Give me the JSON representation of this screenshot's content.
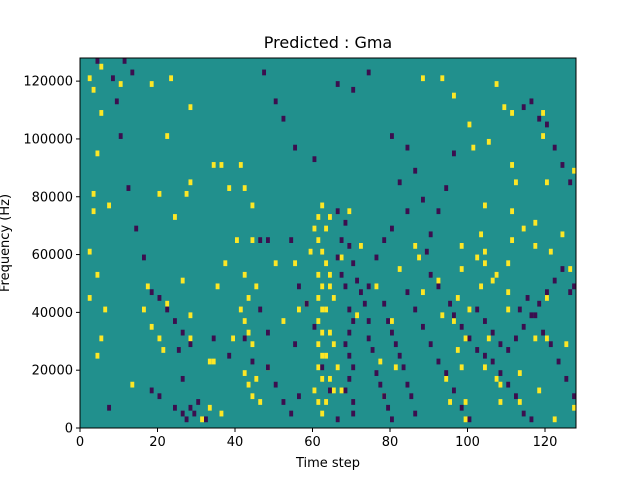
{
  "chart_data": {
    "type": "heatmap",
    "title": "Predicted : Gma",
    "xlabel": "Time step",
    "ylabel": "Frequency (Hz)",
    "xlim": [
      0,
      128
    ],
    "ylim": [
      0,
      128000
    ],
    "x_ticks": [
      0,
      20,
      40,
      60,
      80,
      100,
      120
    ],
    "y_ticks": [
      0,
      20000,
      40000,
      60000,
      80000,
      100000,
      120000
    ],
    "x_tick_labels": [
      "0",
      "20",
      "40",
      "60",
      "80",
      "100",
      "120"
    ],
    "y_tick_labels": [
      "0",
      "20000",
      "40000",
      "60000",
      "80000",
      "100000",
      "120000"
    ],
    "cell_width_steps": 1,
    "cell_height_hz": 2000,
    "value_levels": {
      "low": -1,
      "mid": 0,
      "high": 1
    },
    "colors": {
      "low": "#3b0f4f",
      "mid": "#21908d",
      "high": "#fde725"
    },
    "high_cells": [
      [
        2,
        120000
      ],
      [
        3,
        116000
      ],
      [
        4,
        94000
      ],
      [
        5,
        108000
      ],
      [
        5,
        124000
      ],
      [
        10,
        118000
      ],
      [
        18,
        118000
      ],
      [
        22,
        100000
      ],
      [
        23,
        120000
      ],
      [
        28,
        84000
      ],
      [
        28,
        110000
      ],
      [
        34,
        90000
      ],
      [
        36,
        90000
      ],
      [
        36,
        4000
      ],
      [
        38,
        82000
      ],
      [
        41,
        90000
      ],
      [
        42,
        82000
      ],
      [
        44,
        76000
      ],
      [
        3,
        80000
      ],
      [
        3,
        74000
      ],
      [
        7,
        76000
      ],
      [
        20,
        80000
      ],
      [
        24,
        72000
      ],
      [
        27,
        80000
      ],
      [
        31,
        2000
      ],
      [
        33,
        6000
      ],
      [
        39,
        30000
      ],
      [
        44,
        64000
      ],
      [
        45,
        48000
      ],
      [
        45,
        16000
      ],
      [
        2,
        60000
      ],
      [
        2,
        44000
      ],
      [
        4,
        52000
      ],
      [
        4,
        24000
      ],
      [
        6,
        40000
      ],
      [
        5,
        30000
      ],
      [
        13,
        14000
      ],
      [
        16,
        40000
      ],
      [
        17,
        48000
      ],
      [
        18,
        34000
      ],
      [
        20,
        30000
      ],
      [
        21,
        26000
      ],
      [
        22,
        42000
      ],
      [
        26,
        50000
      ],
      [
        28,
        30000
      ],
      [
        28,
        38000
      ],
      [
        33,
        22000
      ],
      [
        34,
        22000
      ],
      [
        35,
        48000
      ],
      [
        37,
        56000
      ],
      [
        40,
        64000
      ],
      [
        41,
        40000
      ],
      [
        42,
        52000
      ],
      [
        43,
        44000
      ],
      [
        42,
        36000
      ],
      [
        43,
        32000
      ],
      [
        44,
        28000
      ],
      [
        42,
        18000
      ],
      [
        43,
        14000
      ],
      [
        44,
        10000
      ],
      [
        46,
        8000
      ],
      [
        48,
        20000
      ],
      [
        50,
        56000
      ],
      [
        52,
        36000
      ],
      [
        55,
        56000
      ],
      [
        56,
        40000
      ],
      [
        58,
        42000
      ],
      [
        59,
        60000
      ],
      [
        60,
        68000
      ],
      [
        61,
        72000
      ],
      [
        62,
        76000
      ],
      [
        61,
        64000
      ],
      [
        62,
        60000
      ],
      [
        61,
        52000
      ],
      [
        62,
        48000
      ],
      [
        61,
        44000
      ],
      [
        62,
        40000
      ],
      [
        61,
        36000
      ],
      [
        62,
        32000
      ],
      [
        61,
        28000
      ],
      [
        62,
        24000
      ],
      [
        61,
        20000
      ],
      [
        62,
        16000
      ],
      [
        60,
        12000
      ],
      [
        61,
        8000
      ],
      [
        62,
        4000
      ],
      [
        63,
        56000
      ],
      [
        64,
        48000
      ],
      [
        63,
        40000
      ],
      [
        64,
        32000
      ],
      [
        63,
        24000
      ],
      [
        64,
        16000
      ],
      [
        63,
        8000
      ],
      [
        65,
        44000
      ],
      [
        64,
        52000
      ],
      [
        65,
        28000
      ],
      [
        66,
        20000
      ],
      [
        65,
        12000
      ],
      [
        63,
        68000
      ],
      [
        64,
        72000
      ],
      [
        67,
        58000
      ],
      [
        67,
        12000
      ],
      [
        69,
        74000
      ],
      [
        71,
        38000
      ],
      [
        72,
        62000
      ],
      [
        76,
        48000
      ],
      [
        77,
        22000
      ],
      [
        78,
        10000
      ],
      [
        80,
        36000
      ],
      [
        81,
        20000
      ],
      [
        82,
        54000
      ],
      [
        86,
        62000
      ],
      [
        87,
        58000
      ],
      [
        88,
        46000
      ],
      [
        92,
        50000
      ],
      [
        93,
        38000
      ],
      [
        94,
        16000
      ],
      [
        95,
        8000
      ],
      [
        96,
        36000
      ],
      [
        97,
        44000
      ],
      [
        98,
        62000
      ],
      [
        98,
        54000
      ],
      [
        97,
        26000
      ],
      [
        98,
        20000
      ],
      [
        99,
        30000
      ],
      [
        99,
        8000
      ],
      [
        99,
        2000
      ],
      [
        100,
        40000
      ],
      [
        102,
        58000
      ],
      [
        103,
        48000
      ],
      [
        104,
        60000
      ],
      [
        104,
        56000
      ],
      [
        104,
        20000
      ],
      [
        105,
        30000
      ],
      [
        106,
        50000
      ],
      [
        107,
        52000
      ],
      [
        108,
        14000
      ],
      [
        110,
        40000
      ],
      [
        110,
        46000
      ],
      [
        111,
        74000
      ],
      [
        111,
        64000
      ],
      [
        111,
        90000
      ],
      [
        111,
        108000
      ],
      [
        112,
        84000
      ],
      [
        113,
        18000
      ],
      [
        113,
        8000
      ],
      [
        114,
        68000
      ],
      [
        117,
        70000
      ],
      [
        117,
        62000
      ],
      [
        117,
        30000
      ],
      [
        118,
        12000
      ],
      [
        119,
        100000
      ],
      [
        119,
        108000
      ],
      [
        120,
        84000
      ],
      [
        120,
        44000
      ],
      [
        120,
        30000
      ],
      [
        121,
        60000
      ],
      [
        122,
        2000
      ],
      [
        124,
        66000
      ],
      [
        125,
        28000
      ],
      [
        126,
        54000
      ],
      [
        127,
        88000
      ],
      [
        127,
        6000
      ],
      [
        128,
        124000
      ],
      [
        110,
        56000
      ],
      [
        107,
        16000
      ],
      [
        108,
        8000
      ],
      [
        88,
        120000
      ],
      [
        93,
        120000
      ],
      [
        96,
        114000
      ],
      [
        100,
        104000
      ],
      [
        101,
        96000
      ],
      [
        105,
        98000
      ],
      [
        107,
        118000
      ],
      [
        109,
        110000
      ],
      [
        104,
        76000
      ],
      [
        103,
        66000
      ]
    ],
    "low_cells": [
      [
        4,
        126000
      ],
      [
        11,
        126000
      ],
      [
        13,
        122000
      ],
      [
        7,
        6000
      ],
      [
        9,
        112000
      ],
      [
        8,
        120000
      ],
      [
        10,
        100000
      ],
      [
        12,
        82000
      ],
      [
        14,
        68000
      ],
      [
        16,
        58000
      ],
      [
        18,
        46000
      ],
      [
        20,
        44000
      ],
      [
        22,
        40000
      ],
      [
        24,
        36000
      ],
      [
        25,
        26000
      ],
      [
        26,
        32000
      ],
      [
        28,
        28000
      ],
      [
        26,
        16000
      ],
      [
        18,
        12000
      ],
      [
        20,
        10000
      ],
      [
        24,
        6000
      ],
      [
        26,
        4000
      ],
      [
        27,
        2000
      ],
      [
        28,
        6000
      ],
      [
        29,
        4000
      ],
      [
        30,
        8000
      ],
      [
        32,
        2000
      ],
      [
        34,
        30000
      ],
      [
        38,
        24000
      ],
      [
        42,
        30000
      ],
      [
        44,
        22000
      ],
      [
        48,
        20000
      ],
      [
        50,
        14000
      ],
      [
        52,
        8000
      ],
      [
        54,
        4000
      ],
      [
        55,
        28000
      ],
      [
        56,
        48000
      ],
      [
        58,
        42000
      ],
      [
        60,
        34000
      ],
      [
        62,
        20000
      ],
      [
        64,
        12000
      ],
      [
        66,
        2000
      ],
      [
        66,
        58000
      ],
      [
        67,
        52000
      ],
      [
        68,
        48000
      ],
      [
        69,
        40000
      ],
      [
        70,
        36000
      ],
      [
        69,
        32000
      ],
      [
        68,
        28000
      ],
      [
        69,
        24000
      ],
      [
        70,
        20000
      ],
      [
        69,
        16000
      ],
      [
        68,
        12000
      ],
      [
        70,
        8000
      ],
      [
        70,
        4000
      ],
      [
        67,
        64000
      ],
      [
        68,
        70000
      ],
      [
        66,
        74000
      ],
      [
        69,
        62000
      ],
      [
        70,
        56000
      ],
      [
        71,
        50000
      ],
      [
        72,
        46000
      ],
      [
        73,
        42000
      ],
      [
        74,
        36000
      ],
      [
        74,
        30000
      ],
      [
        75,
        26000
      ],
      [
        76,
        18000
      ],
      [
        77,
        14000
      ],
      [
        78,
        10000
      ],
      [
        79,
        6000
      ],
      [
        80,
        2000
      ],
      [
        78,
        42000
      ],
      [
        79,
        36000
      ],
      [
        80,
        32000
      ],
      [
        81,
        28000
      ],
      [
        82,
        24000
      ],
      [
        83,
        20000
      ],
      [
        84,
        14000
      ],
      [
        85,
        10000
      ],
      [
        86,
        4000
      ],
      [
        84,
        46000
      ],
      [
        86,
        40000
      ],
      [
        88,
        34000
      ],
      [
        90,
        28000
      ],
      [
        92,
        22000
      ],
      [
        94,
        18000
      ],
      [
        96,
        12000
      ],
      [
        98,
        6000
      ],
      [
        100,
        2000
      ],
      [
        74,
        48000
      ],
      [
        76,
        58000
      ],
      [
        78,
        64000
      ],
      [
        80,
        68000
      ],
      [
        82,
        84000
      ],
      [
        84,
        74000
      ],
      [
        88,
        78000
      ],
      [
        89,
        60000
      ],
      [
        90,
        52000
      ],
      [
        92,
        48000
      ],
      [
        95,
        42000
      ],
      [
        96,
        38000
      ],
      [
        98,
        34000
      ],
      [
        100,
        30000
      ],
      [
        102,
        26000
      ],
      [
        104,
        24000
      ],
      [
        106,
        22000
      ],
      [
        108,
        18000
      ],
      [
        110,
        14000
      ],
      [
        112,
        10000
      ],
      [
        114,
        4000
      ],
      [
        116,
        2000
      ],
      [
        102,
        40000
      ],
      [
        104,
        36000
      ],
      [
        106,
        32000
      ],
      [
        108,
        28000
      ],
      [
        110,
        26000
      ],
      [
        112,
        30000
      ],
      [
        114,
        34000
      ],
      [
        116,
        38000
      ],
      [
        118,
        42000
      ],
      [
        120,
        46000
      ],
      [
        122,
        50000
      ],
      [
        124,
        54000
      ],
      [
        126,
        46000
      ],
      [
        127,
        48000
      ],
      [
        113,
        40000
      ],
      [
        115,
        44000
      ],
      [
        117,
        38000
      ],
      [
        119,
        32000
      ],
      [
        121,
        28000
      ],
      [
        123,
        22000
      ],
      [
        125,
        16000
      ],
      [
        127,
        10000
      ],
      [
        114,
        110000
      ],
      [
        116,
        112000
      ],
      [
        118,
        106000
      ],
      [
        120,
        104000
      ],
      [
        122,
        96000
      ],
      [
        124,
        90000
      ],
      [
        126,
        84000
      ],
      [
        128,
        80000
      ],
      [
        96,
        94000
      ],
      [
        94,
        82000
      ],
      [
        92,
        74000
      ],
      [
        90,
        66000
      ],
      [
        86,
        88000
      ],
      [
        84,
        96000
      ],
      [
        80,
        100000
      ],
      [
        74,
        122000
      ],
      [
        70,
        116000
      ],
      [
        66,
        118000
      ],
      [
        60,
        92000
      ],
      [
        55,
        96000
      ],
      [
        52,
        106000
      ],
      [
        50,
        112000
      ],
      [
        47,
        122000
      ],
      [
        46,
        64000
      ],
      [
        48,
        64000
      ],
      [
        54,
        64000
      ],
      [
        46,
        40000
      ],
      [
        48,
        32000
      ],
      [
        56,
        10000
      ]
    ]
  }
}
